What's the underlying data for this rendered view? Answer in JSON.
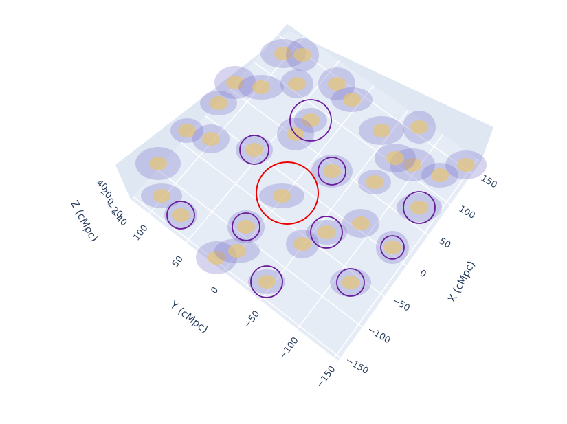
{
  "chart_data": {
    "type": "scatter3d",
    "xlabel": "X (cMpc)",
    "ylabel": "Y (cMpc)",
    "zlabel": "Z (cMpc)",
    "xlim": [
      -155,
      170
    ],
    "ylim": [
      -155,
      125
    ],
    "zlim": [
      -50,
      50
    ],
    "xticks": [
      {
        "value": -150,
        "label": "−150"
      },
      {
        "value": -100,
        "label": "−100"
      },
      {
        "value": -50,
        "label": "−50"
      },
      0,
      50,
      100,
      150
    ],
    "yticks": [
      {
        "value": -150,
        "label": "−150"
      },
      {
        "value": -100,
        "label": "−100"
      },
      {
        "value": -50,
        "label": "−50"
      },
      0,
      50,
      100
    ],
    "zticks": [
      {
        "value": -40,
        "label": "−40"
      },
      {
        "value": -20,
        "label": "−20"
      },
      0,
      20,
      40
    ],
    "grid": true
  }
}
